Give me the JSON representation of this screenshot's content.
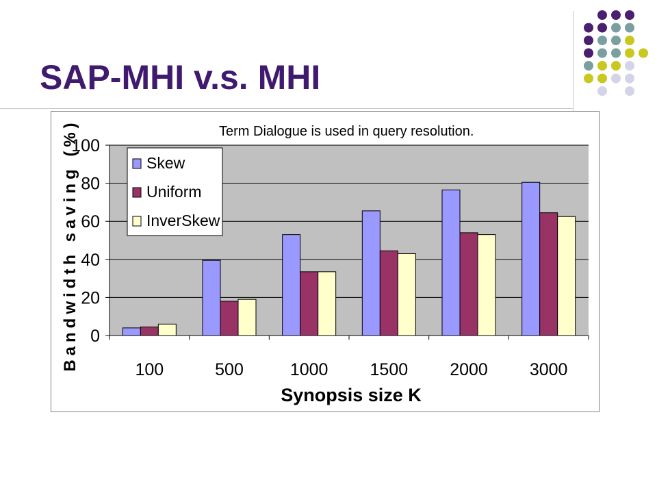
{
  "slide": {
    "title": "SAP-MHI v.s. MHI",
    "decor_colors": [
      "#4b1f6f",
      "#7a9fa0",
      "#c8c820",
      "#d4d4e8"
    ]
  },
  "chart_data": {
    "type": "bar",
    "title": "",
    "annotation": "Term Dialogue is used in query resolution.",
    "xlabel": "Synopsis size K",
    "ylabel": "Bandwidth saving (%)",
    "categories": [
      "100",
      "500",
      "1000",
      "1500",
      "2000",
      "3000"
    ],
    "ylim": [
      0,
      100
    ],
    "yticks": [
      "0",
      "20",
      "40",
      "60",
      "80",
      "100"
    ],
    "grid": true,
    "legend_position": "top-left",
    "series": [
      {
        "name": "Skew",
        "color": "#9999ff",
        "values": [
          4,
          39.5,
          53,
          65.5,
          76.5,
          80.5
        ]
      },
      {
        "name": "Uniform",
        "color": "#993366",
        "values": [
          4.5,
          18,
          33.5,
          44.5,
          54,
          64.5
        ]
      },
      {
        "name": "InverSkew",
        "color": "#ffffcc",
        "values": [
          6,
          19,
          33.5,
          43,
          53,
          62.5
        ]
      }
    ]
  }
}
